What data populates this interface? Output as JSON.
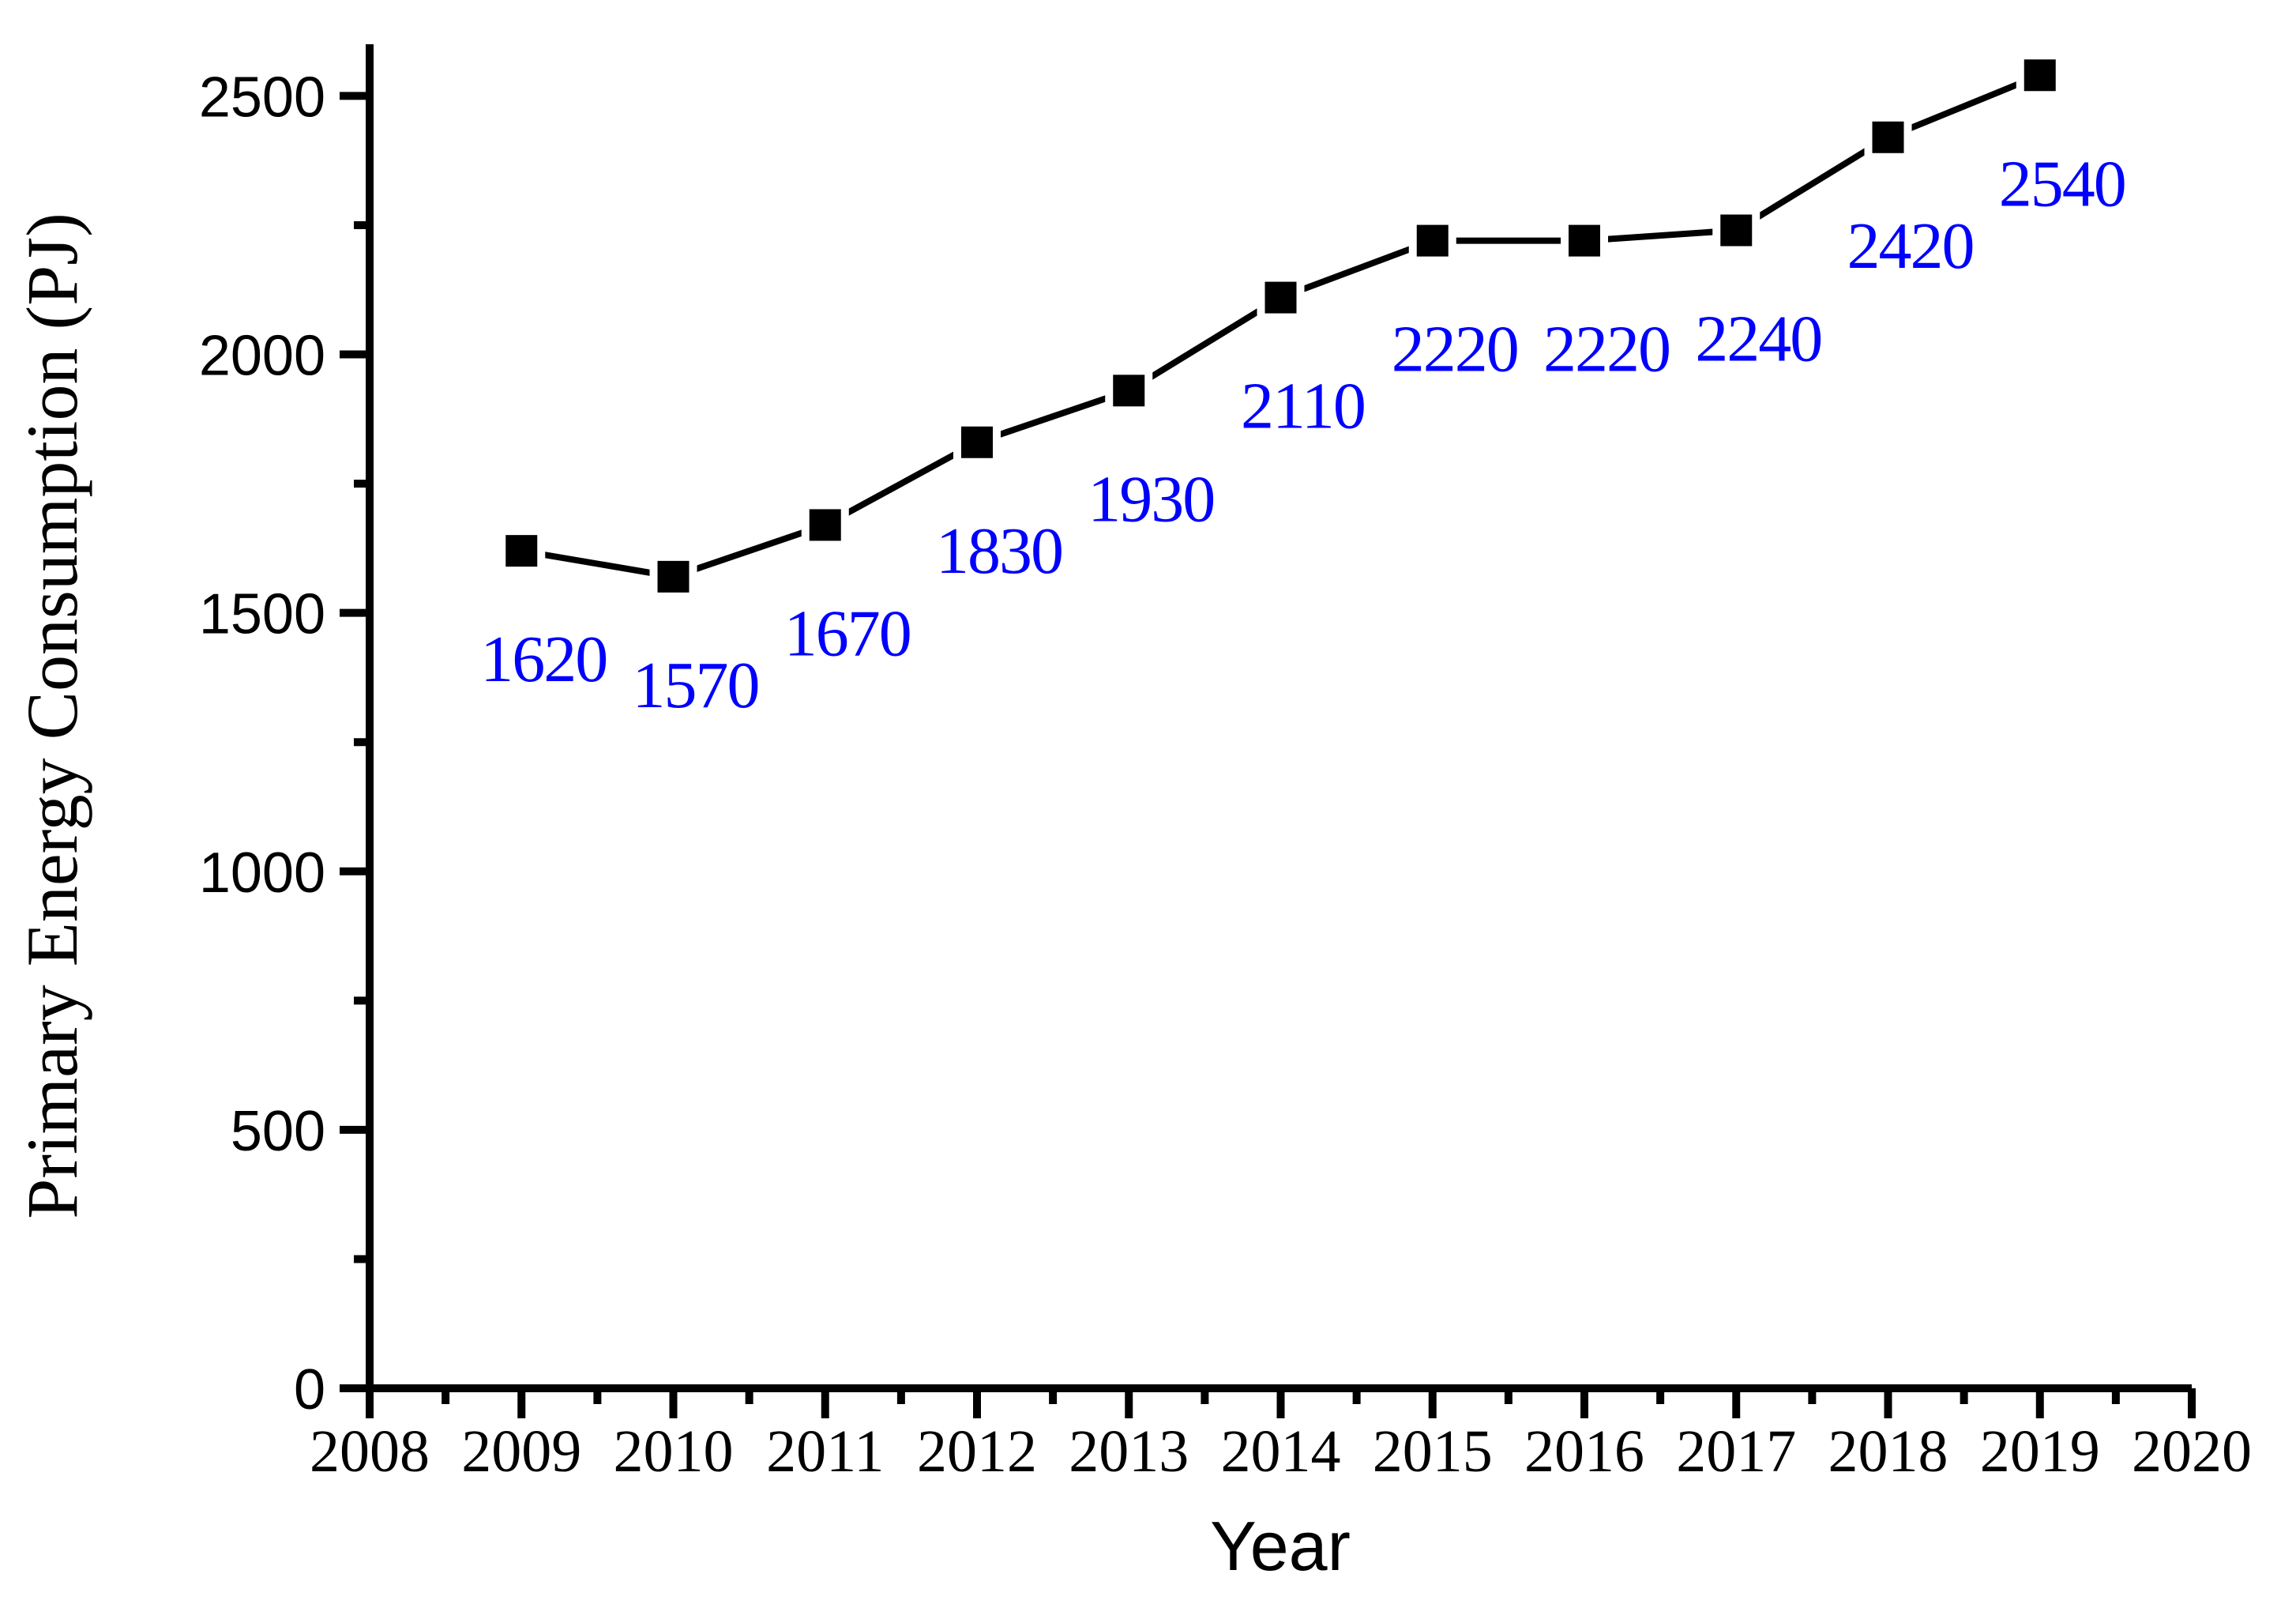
{
  "chart_data": {
    "type": "line",
    "title": "",
    "xlabel": "Year",
    "ylabel": "Primary Energy Consumption (PJ)",
    "x": [
      2009,
      2010,
      2011,
      2012,
      2013,
      2014,
      2015,
      2016,
      2017,
      2018,
      2019
    ],
    "values": [
      1620,
      1570,
      1670,
      1830,
      1930,
      2110,
      2220,
      2220,
      2240,
      2420,
      2540
    ],
    "point_labels": [
      "1620",
      "1570",
      "1670",
      "1830",
      "1930",
      "2110",
      "2220",
      "2220",
      "2240",
      "2420",
      "2540"
    ],
    "xlim": [
      2008,
      2020
    ],
    "ylim": [
      0,
      2600
    ],
    "x_major_ticks": [
      2008,
      2009,
      2010,
      2011,
      2012,
      2013,
      2014,
      2015,
      2016,
      2017,
      2018,
      2019,
      2020
    ],
    "x_minor_step": 0.5,
    "y_major_ticks": [
      0,
      500,
      1000,
      1500,
      2000,
      2500
    ],
    "y_minor_step": 250,
    "grid": false,
    "legend": "none",
    "marker": "filled-square",
    "line_color": "#000000",
    "marker_color": "#000000",
    "axis_color": "#000000",
    "label_color": "#0000FF",
    "background": "#FFFFFF"
  }
}
